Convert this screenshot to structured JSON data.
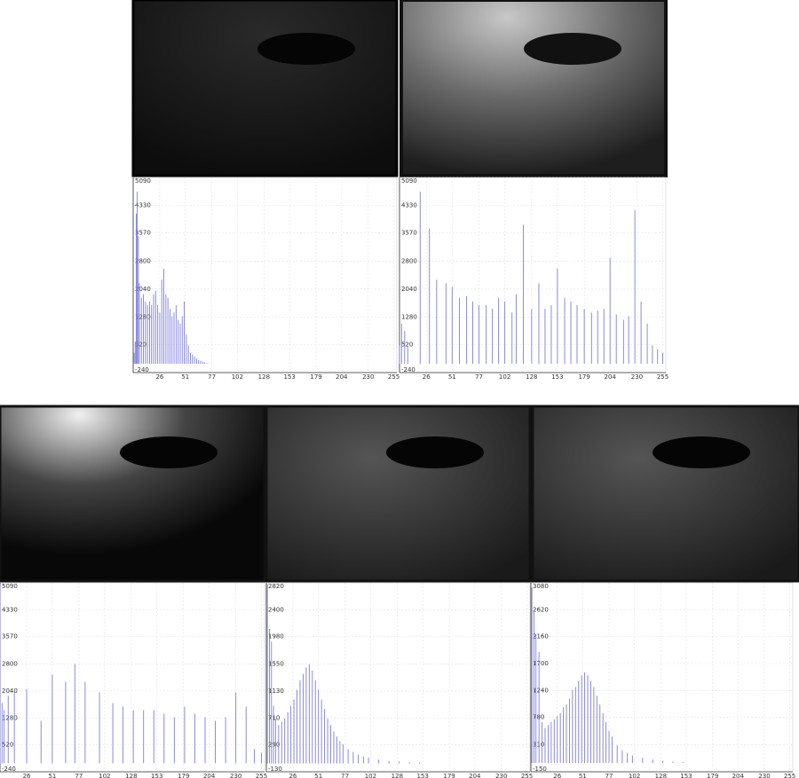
{
  "chart_data": [
    {
      "type": "bar",
      "color": "#7d7de0",
      "grid": true,
      "xlim": [
        0,
        258
      ],
      "ylim": [
        -240,
        5090
      ],
      "xticks": [
        26,
        51,
        77,
        102,
        128,
        153,
        179,
        204,
        230,
        255
      ],
      "yticks": [
        -240,
        520,
        1280,
        2040,
        2800,
        3570,
        4330,
        5090
      ],
      "x": [
        1,
        2,
        3,
        4,
        5,
        6,
        8,
        10,
        12,
        14,
        16,
        18,
        20,
        22,
        24,
        26,
        28,
        30,
        32,
        34,
        36,
        38,
        40,
        42,
        44,
        46,
        48,
        50,
        52,
        54,
        56,
        58,
        60,
        62,
        64,
        66,
        68,
        70,
        72,
        74
      ],
      "values": [
        300,
        600,
        4100,
        4700,
        3500,
        2200,
        1800,
        1900,
        1700,
        1600,
        1700,
        1600,
        1900,
        2000,
        1600,
        1400,
        2300,
        2600,
        1900,
        1800,
        1500,
        1300,
        1400,
        1600,
        1200,
        1100,
        1300,
        1700,
        800,
        500,
        300,
        250,
        200,
        150,
        100,
        80,
        60,
        40,
        20,
        10
      ]
    },
    {
      "type": "bar",
      "color": "#7d7de0",
      "grid": true,
      "xlim": [
        0,
        258
      ],
      "ylim": [
        -240,
        5090
      ],
      "xticks": [
        26,
        51,
        77,
        102,
        128,
        153,
        179,
        204,
        230,
        255
      ],
      "yticks": [
        -240,
        520,
        1280,
        2040,
        2800,
        3570,
        4330,
        5090
      ],
      "x": [
        0,
        2,
        5,
        8,
        20,
        29,
        36,
        45,
        51,
        58,
        65,
        71,
        77,
        84,
        90,
        96,
        102,
        109,
        113,
        120,
        128,
        135,
        141,
        147,
        153,
        160,
        166,
        172,
        179,
        186,
        192,
        198,
        204,
        210,
        217,
        222,
        228,
        234,
        240,
        245,
        250,
        255
      ],
      "values": [
        500,
        1100,
        900,
        450,
        4700,
        3700,
        2300,
        2200,
        2100,
        1800,
        1850,
        1700,
        1600,
        1600,
        1500,
        1800,
        1700,
        1400,
        1900,
        3800,
        1500,
        2200,
        1500,
        1600,
        2600,
        1800,
        1700,
        1600,
        1500,
        1400,
        1450,
        1500,
        2900,
        1350,
        1200,
        1300,
        4200,
        1700,
        1100,
        500,
        400,
        300
      ]
    },
    {
      "type": "bar",
      "color": "#7d7de0",
      "grid": true,
      "xlim": [
        0,
        258
      ],
      "ylim": [
        -240,
        5090
      ],
      "xticks": [
        26,
        51,
        77,
        102,
        128,
        153,
        179,
        204,
        230,
        255
      ],
      "yticks": [
        -240,
        520,
        1280,
        2040,
        2800,
        3570,
        4330,
        5090
      ],
      "x": [
        0,
        2,
        4,
        8,
        14,
        26,
        40,
        51,
        64,
        73,
        83,
        97,
        110,
        120,
        130,
        140,
        150,
        160,
        170,
        180,
        190,
        200,
        210,
        220,
        230,
        240,
        248,
        255
      ],
      "values": [
        5000,
        1700,
        1500,
        1900,
        2000,
        2100,
        1200,
        2500,
        2300,
        2800,
        2300,
        2000,
        1700,
        1600,
        1500,
        1500,
        1500,
        1400,
        1300,
        1600,
        1400,
        1300,
        1200,
        1300,
        2000,
        1600,
        400,
        300
      ]
    },
    {
      "type": "bar",
      "color": "#7d7de0",
      "grid": true,
      "xlim": [
        0,
        258
      ],
      "ylim": [
        -130,
        2820
      ],
      "xticks": [
        26,
        51,
        77,
        102,
        128,
        153,
        179,
        204,
        230,
        255
      ],
      "yticks": [
        -130,
        290,
        710,
        1130,
        1550,
        1980,
        2400,
        2820
      ],
      "x": [
        1,
        3,
        5,
        7,
        9,
        12,
        15,
        18,
        21,
        24,
        27,
        30,
        33,
        36,
        39,
        42,
        45,
        48,
        51,
        54,
        57,
        60,
        63,
        66,
        69,
        72,
        75,
        80,
        85,
        90,
        95,
        100,
        110,
        120,
        130,
        140,
        150
      ],
      "values": [
        2800,
        2100,
        1900,
        900,
        700,
        600,
        650,
        700,
        800,
        900,
        1000,
        1150,
        1300,
        1400,
        1500,
        1550,
        1450,
        1300,
        1150,
        1000,
        850,
        700,
        600,
        500,
        420,
        350,
        300,
        220,
        180,
        140,
        110,
        90,
        60,
        40,
        30,
        20,
        15
      ]
    },
    {
      "type": "bar",
      "color": "#7d7de0",
      "grid": true,
      "xlim": [
        0,
        258
      ],
      "ylim": [
        -150,
        3080
      ],
      "xticks": [
        26,
        51,
        77,
        102,
        128,
        153,
        179,
        204,
        230,
        255
      ],
      "yticks": [
        -150,
        310,
        780,
        1240,
        1700,
        2160,
        2620,
        3080
      ],
      "x": [
        1,
        3,
        5,
        8,
        11,
        14,
        17,
        20,
        23,
        26,
        29,
        32,
        35,
        38,
        41,
        44,
        47,
        50,
        53,
        56,
        59,
        62,
        65,
        68,
        71,
        74,
        77,
        80,
        85,
        90,
        95,
        100,
        110,
        120,
        130,
        140,
        150
      ],
      "values": [
        3000,
        2600,
        2200,
        1900,
        700,
        600,
        650,
        700,
        750,
        800,
        850,
        950,
        1000,
        1100,
        1250,
        1300,
        1400,
        1500,
        1550,
        1500,
        1400,
        1300,
        1150,
        1000,
        850,
        700,
        550,
        450,
        300,
        220,
        170,
        130,
        90,
        60,
        40,
        25,
        15
      ]
    }
  ]
}
